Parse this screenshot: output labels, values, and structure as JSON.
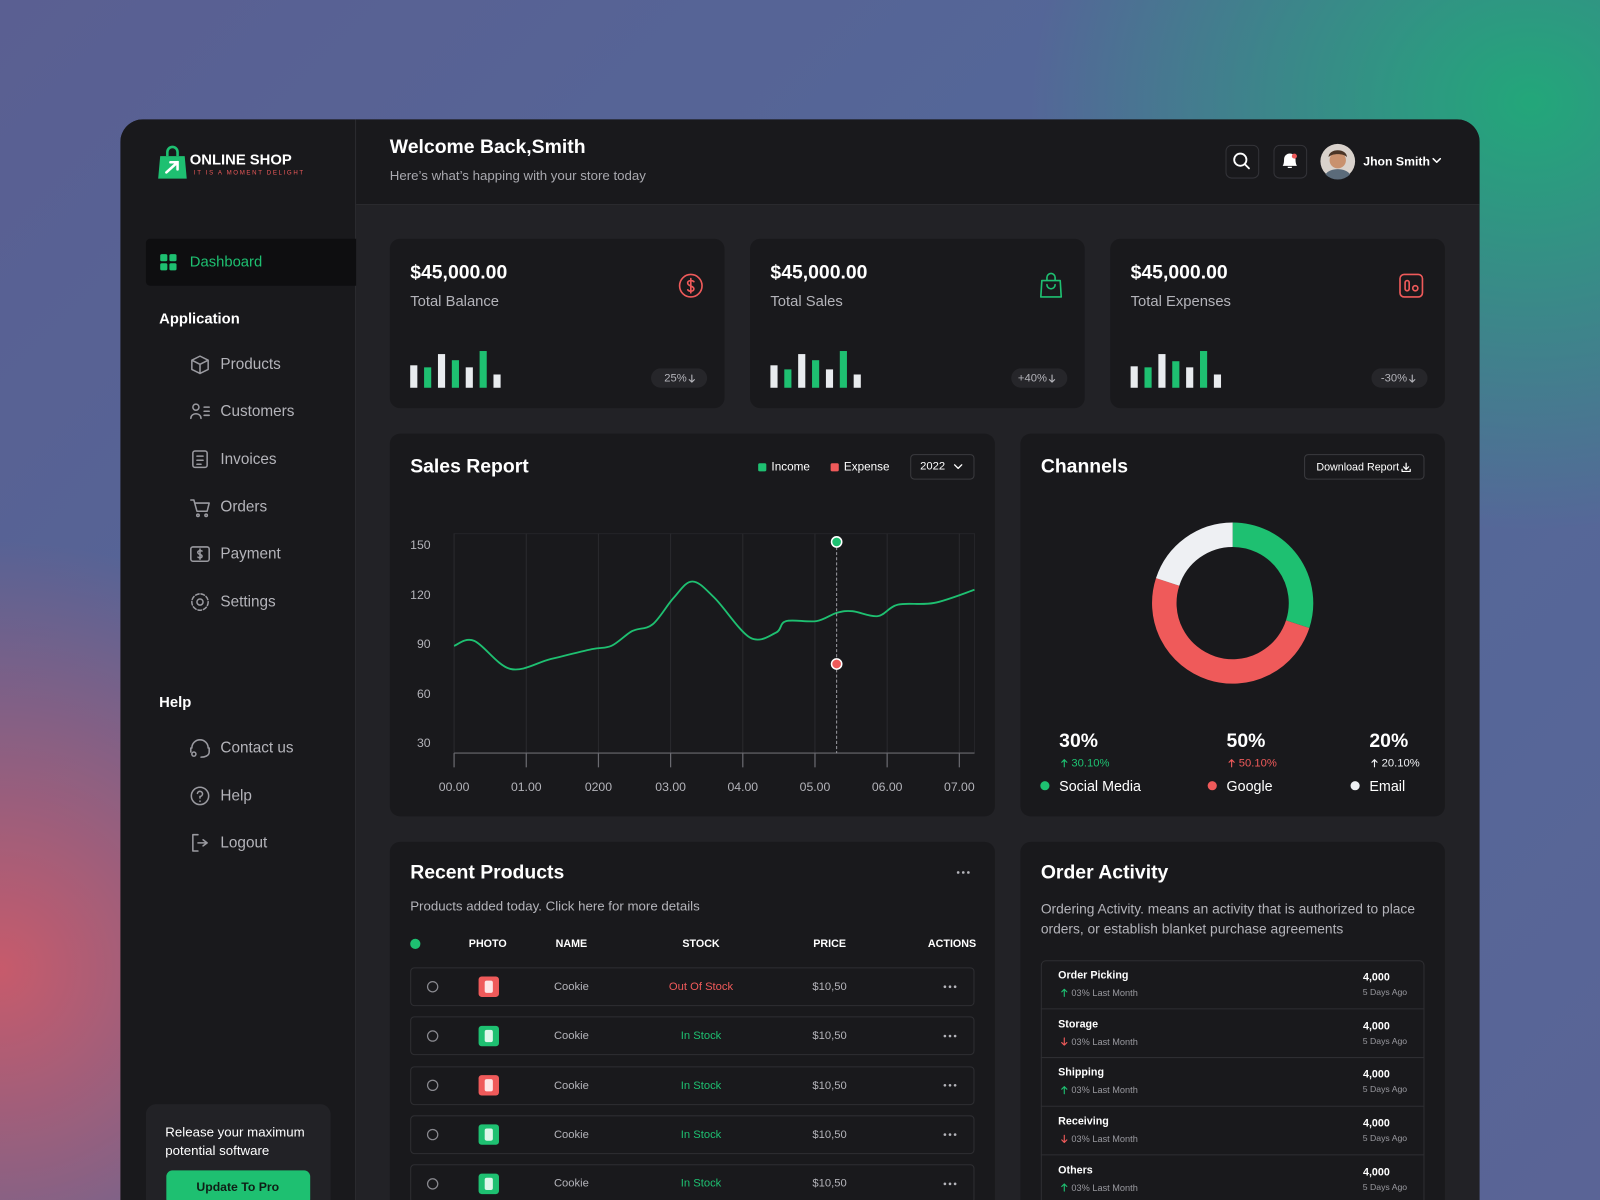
{
  "brand": {
    "name": "ONLINE SHOP",
    "tagline": "IT IS A MOMENT DELIGHT"
  },
  "header": {
    "title": "Welcome Back,Smith",
    "subtitle": "Here’s what’s happing with your store today",
    "user": "Jhon Smith"
  },
  "sidebar": {
    "active": "Dashboard",
    "sections": [
      {
        "title": "Application",
        "items": [
          "Products",
          "Customers",
          "Invoices",
          "Orders",
          "Payment",
          "Settings"
        ]
      },
      {
        "title": "Help",
        "items": [
          "Contact us",
          "Help",
          "Logout"
        ]
      }
    ],
    "promo": {
      "text": "Release your maximum potential software",
      "button": "Update To Pro"
    }
  },
  "stats": {
    "bar_colors": [
      "#e9ecef",
      "#1ec071"
    ],
    "cards": [
      {
        "amount": "$45,000.00",
        "label": "Total Balance",
        "change": "25%",
        "bars": [
          22,
          20,
          33,
          27,
          20,
          36,
          13
        ]
      },
      {
        "amount": "$45,000.00",
        "label": "Total Sales",
        "change": "+40%",
        "bars": [
          22,
          18,
          33,
          27,
          18,
          36,
          13
        ]
      },
      {
        "amount": "$45,000.00",
        "label": "Total Expenses",
        "change": "-30%",
        "bars": [
          21,
          20,
          33,
          26,
          20,
          36,
          13
        ]
      }
    ]
  },
  "sales_report": {
    "type": "line",
    "title": "Sales Report",
    "year": "2022",
    "series": [
      {
        "name": "Income",
        "color": "#1ec071",
        "values": [
          89,
          92,
          75,
          81,
          87,
          89,
          98,
          102,
          118,
          128,
          118,
          94,
          97,
          104,
          104,
          109,
          110,
          107,
          114,
          115,
          123
        ]
      },
      {
        "name": "Expense",
        "color": "#ef5a5a"
      }
    ],
    "x": [
      0,
      0.28,
      0.78,
      1.34,
      1.91,
      2.18,
      2.47,
      2.75,
      3.04,
      3.3,
      3.61,
      4.1,
      4.46,
      4.6,
      5.02,
      5.3,
      5.52,
      5.87,
      6.15,
      6.65,
      7.21
    ],
    "xlim": [
      0,
      7.21
    ],
    "ylim": [
      24,
      157
    ],
    "xticks": [
      {
        "value": 0,
        "label": "00.00"
      },
      {
        "value": 1,
        "label": "01.00"
      },
      {
        "value": 2,
        "label": "0200"
      },
      {
        "value": 3,
        "label": "03.00"
      },
      {
        "value": 4,
        "label": "04.00"
      },
      {
        "value": 5,
        "label": "05.00"
      },
      {
        "value": 6,
        "label": "06.00"
      },
      {
        "value": 7,
        "label": "07.00"
      }
    ],
    "yticks": [
      30,
      60,
      90,
      120,
      150
    ],
    "grid": true,
    "highlight": {
      "x": 5.3,
      "values": [
        152,
        78
      ]
    }
  },
  "channels": {
    "type": "pie",
    "title": "Channels",
    "button": "Download Report",
    "categories": [
      "Social Media",
      "Google",
      "Email"
    ],
    "values": [
      30,
      50,
      20
    ],
    "value_labels": [
      "30%",
      "50%",
      "20%"
    ],
    "changes": [
      "30.10%",
      "50.10%",
      "20.10%"
    ],
    "colors": [
      "#1ec071",
      "#ef5a5a",
      "#eef0f3"
    ]
  },
  "recent_products": {
    "title": "Recent Products",
    "subtitle": "Products added today. Click here for more details",
    "columns": [
      "PHOTO",
      "NAME",
      "STOCK",
      "PRICE",
      "ACTIONS"
    ],
    "rows": [
      {
        "name": "Cookie",
        "stock": "Out Of Stock",
        "price": "$10,50",
        "stock_color": "#ef5a5a",
        "photo_color": "#ef5a5a"
      },
      {
        "name": "Cookie",
        "stock": "In Stock",
        "price": "$10,50",
        "stock_color": "#1ec071",
        "photo_color": "#1ec071"
      },
      {
        "name": "Cookie",
        "stock": "In Stock",
        "price": "$10,50",
        "stock_color": "#1ec071",
        "photo_color": "#ef5a5a"
      },
      {
        "name": "Cookie",
        "stock": "In Stock",
        "price": "$10,50",
        "stock_color": "#1ec071",
        "photo_color": "#1ec071"
      },
      {
        "name": "Cookie",
        "stock": "In Stock",
        "price": "$10,50",
        "stock_color": "#1ec071",
        "photo_color": "#1ec071"
      }
    ]
  },
  "order_activity": {
    "title": "Order Activity",
    "description": "Ordering Activity. means an activity that is authorized to place orders, or establish blanket purchase agreements",
    "items": [
      {
        "name": "Order Picking",
        "change": "03% Last Month",
        "trend": "up",
        "value": "4,000",
        "time": "5 Days Ago"
      },
      {
        "name": "Storage",
        "change": "03% Last Month",
        "trend": "down",
        "value": "4,000",
        "time": "5 Days Ago"
      },
      {
        "name": "Shipping",
        "change": "03% Last Month",
        "trend": "up",
        "value": "4,000",
        "time": "5 Days Ago"
      },
      {
        "name": "Receiving",
        "change": "03% Last Month",
        "trend": "down",
        "value": "4,000",
        "time": "5 Days Ago"
      },
      {
        "name": "Others",
        "change": "03% Last Month",
        "trend": "up",
        "value": "4,000",
        "time": "5 Days Ago"
      }
    ]
  }
}
